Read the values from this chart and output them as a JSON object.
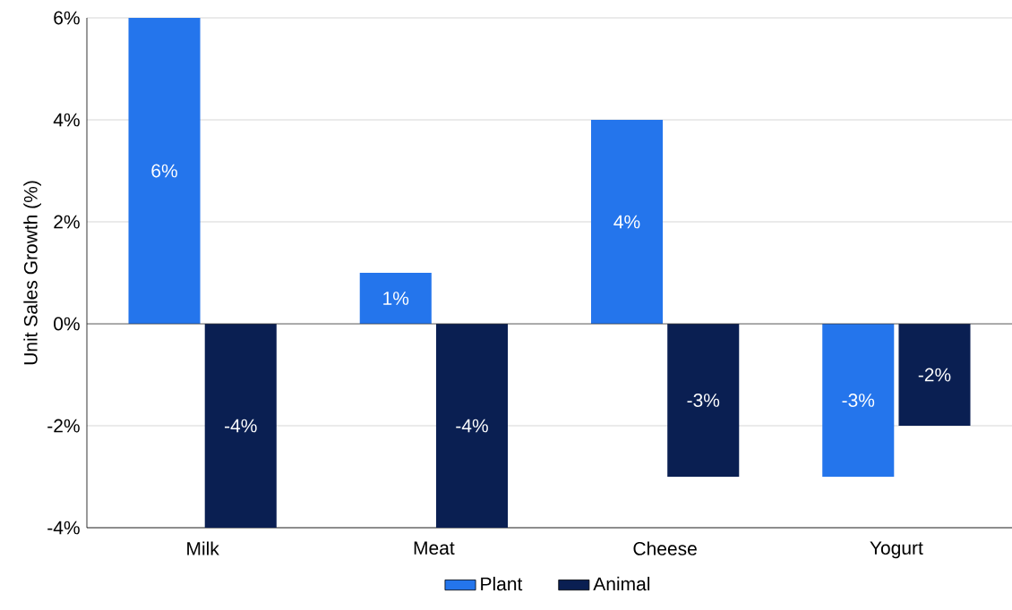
{
  "chart_data": {
    "type": "bar",
    "ylabel": "Unit Sales Growth (%)",
    "categories": [
      "Milk",
      "Meat",
      "Cheese",
      "Yogurt"
    ],
    "series": [
      {
        "name": "Plant",
        "color": "#2475ec",
        "values": [
          6,
          1,
          4,
          -3
        ],
        "value_labels": [
          "6%",
          "1%",
          "4%",
          "-3%"
        ]
      },
      {
        "name": "Animal",
        "color": "#0a1f52",
        "values": [
          -4,
          -4,
          -3,
          -2
        ],
        "value_labels": [
          "-4%",
          "-4%",
          "-3%",
          "-2%"
        ]
      }
    ],
    "ylim": [
      -4,
      6
    ],
    "yticks": [
      {
        "value": -4,
        "label": "-4%"
      },
      {
        "value": -2,
        "label": "-2%"
      },
      {
        "value": 0,
        "label": "0%"
      },
      {
        "value": 2,
        "label": "2%"
      },
      {
        "value": 4,
        "label": "4%"
      },
      {
        "value": 6,
        "label": "6%"
      }
    ],
    "grid": "y",
    "legend": "bottom"
  }
}
